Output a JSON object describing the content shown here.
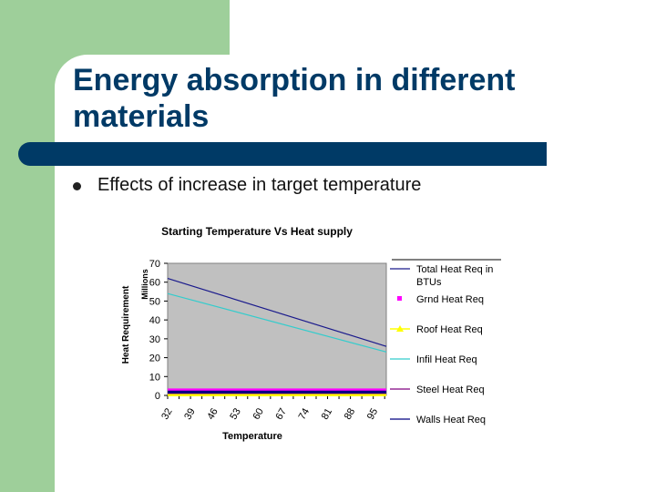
{
  "slide": {
    "title_line1": "Energy absorption in different",
    "title_line2": "materials",
    "bullet": "Effects of increase in target temperature"
  },
  "colors": {
    "green": "#9ecf9a",
    "navy": "#003a66",
    "plot_bg": "#c0c0c0"
  },
  "chart_data": {
    "type": "line",
    "title": "Starting Temperature Vs Heat supply",
    "xlabel": "Temperature",
    "ylabel": "Heat Requirement",
    "yunit": "Millions",
    "ylim": [
      0,
      70
    ],
    "yticks": [
      0,
      10,
      20,
      30,
      40,
      50,
      60,
      70
    ],
    "xlim": [
      32,
      99
    ],
    "xticks": [
      32,
      39,
      46,
      53,
      60,
      67,
      74,
      81,
      88,
      95
    ],
    "grid": false,
    "legend_position": "right",
    "series": [
      {
        "name": "Total Heat Req in BTUs",
        "color": "#1a1a8c",
        "marker": "none",
        "x": [
          32,
          99
        ],
        "y": [
          62,
          26
        ]
      },
      {
        "name": "Grnd Heat Req",
        "color": "#ff00ff",
        "marker": "square",
        "x": [
          32,
          99
        ],
        "y": [
          2.5,
          2.5
        ]
      },
      {
        "name": "Roof Heat Req",
        "color": "#ffff00",
        "marker": "triangle",
        "x": [
          32,
          99
        ],
        "y": [
          0.3,
          0.3
        ]
      },
      {
        "name": "Infil Heat Req",
        "color": "#33cccc",
        "marker": "none",
        "x": [
          32,
          99
        ],
        "y": [
          54,
          23
        ]
      },
      {
        "name": "Steel Heat Req",
        "color": "#800080",
        "marker": "none",
        "x": [
          32,
          99
        ],
        "y": [
          1.5,
          1.5
        ]
      },
      {
        "name": "Walls Heat Req",
        "color": "#000080",
        "marker": "none",
        "x": [
          32,
          99
        ],
        "y": [
          1.8,
          1.8
        ]
      }
    ]
  }
}
